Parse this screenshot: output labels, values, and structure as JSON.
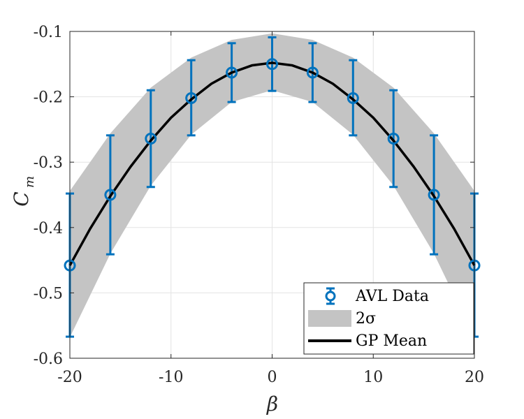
{
  "chart_data": {
    "type": "line",
    "xlabel": "β",
    "ylabel_main": "C",
    "ylabel_sub": "m",
    "xlim": [
      -20,
      20
    ],
    "ylim": [
      -0.6,
      -0.1
    ],
    "x_ticks": [
      -20,
      -10,
      0,
      10,
      20
    ],
    "x_tick_labels": [
      "-20",
      "-10",
      "0",
      "10",
      "20"
    ],
    "y_ticks": [
      -0.6,
      -0.5,
      -0.4,
      -0.3,
      -0.2,
      -0.1
    ],
    "y_tick_labels": [
      "-0.6",
      "-0.5",
      "-0.4",
      "-0.3",
      "-0.2",
      "-0.1"
    ],
    "grid": true,
    "legend_position": "bottom-right",
    "colors": {
      "data": "#0072BD",
      "band": "#C4C4C4",
      "mean": "#000000",
      "grid": "#E3E3E3",
      "axis": "#262626"
    },
    "series": [
      {
        "name": "AVL Data",
        "kind": "errorbar",
        "x": [
          -20,
          -16,
          -12,
          -8,
          -4,
          0,
          4,
          8,
          12,
          16,
          20
        ],
        "y": [
          -0.458,
          -0.35,
          -0.264,
          -0.202,
          -0.163,
          -0.15,
          -0.163,
          -0.202,
          -0.264,
          -0.35,
          -0.458
        ],
        "err_low": [
          -0.567,
          -0.441,
          -0.338,
          -0.259,
          -0.208,
          -0.191,
          -0.208,
          -0.259,
          -0.338,
          -0.441,
          -0.567
        ],
        "err_high": [
          -0.348,
          -0.259,
          -0.19,
          -0.144,
          -0.118,
          -0.109,
          -0.118,
          -0.144,
          -0.19,
          -0.259,
          -0.348
        ]
      },
      {
        "name": "2σ",
        "kind": "band",
        "x": [
          -20,
          -16,
          -12,
          -8,
          -4,
          0,
          4,
          8,
          12,
          16,
          20
        ],
        "lower": [
          -0.568,
          -0.44,
          -0.336,
          -0.258,
          -0.208,
          -0.19,
          -0.208,
          -0.258,
          -0.336,
          -0.44,
          -0.568
        ],
        "upper": [
          -0.344,
          -0.256,
          -0.186,
          -0.14,
          -0.113,
          -0.103,
          -0.113,
          -0.14,
          -0.186,
          -0.256,
          -0.344
        ]
      },
      {
        "name": "GP Mean",
        "kind": "line",
        "x": [
          -20,
          -18,
          -16,
          -14,
          -12,
          -10,
          -8,
          -6,
          -4,
          -2,
          0,
          2,
          4,
          6,
          8,
          10,
          12,
          14,
          16,
          18,
          20
        ],
        "y": [
          -0.458,
          -0.402,
          -0.352,
          -0.307,
          -0.267,
          -0.232,
          -0.204,
          -0.18,
          -0.163,
          -0.152,
          -0.148,
          -0.152,
          -0.163,
          -0.18,
          -0.204,
          -0.232,
          -0.267,
          -0.307,
          -0.352,
          -0.402,
          -0.458
        ]
      }
    ]
  }
}
